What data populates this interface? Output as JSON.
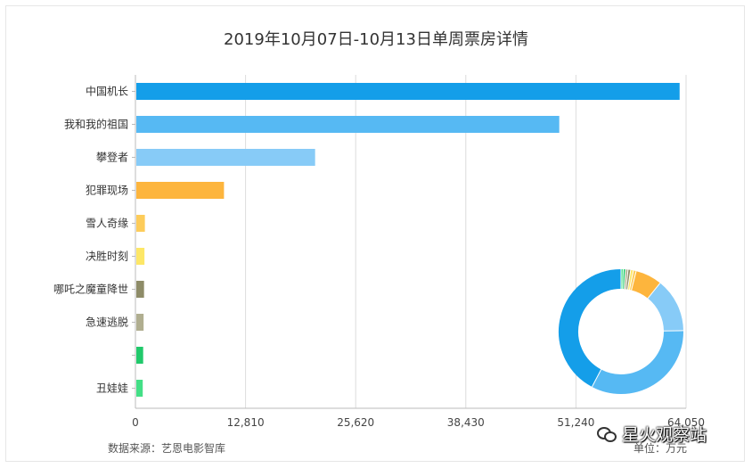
{
  "chart_data": [
    {
      "type": "bar",
      "orientation": "horizontal",
      "title": "2019年10月07日-10月13日单周票房详情",
      "categories": [
        "中国机长",
        "我和我的祖国",
        "攀登者",
        "犯罪现场",
        "雪人奇缘",
        "决胜时刻",
        "哪吒之魔童降世",
        "急速逃脱",
        "",
        "丑娃娃"
      ],
      "values": [
        63300,
        49300,
        20900,
        10300,
        1100,
        1050,
        1000,
        950,
        900,
        850
      ],
      "colors": [
        "#149ee9",
        "#56b9f3",
        "#87cbf7",
        "#fdb53d",
        "#fdcc5a",
        "#fde767",
        "#8e8c68",
        "#b0ae90",
        "#21c96b",
        "#43df86"
      ],
      "xticks": [
        "0",
        "12,810",
        "25,620",
        "38,430",
        "51,240",
        "64,050"
      ],
      "xlim": [
        0,
        64050
      ],
      "grid": true,
      "legend": "none"
    },
    {
      "type": "pie",
      "style": "donut",
      "values": [
        63300,
        49300,
        20900,
        10300,
        1100,
        1050,
        1000,
        950,
        900,
        850
      ],
      "colors": [
        "#149ee9",
        "#56b9f3",
        "#87cbf7",
        "#fdb53d",
        "#fdcc5a",
        "#fde767",
        "#8e8c68",
        "#b0ae90",
        "#21c96b",
        "#43df86"
      ]
    }
  ],
  "footer": {
    "source": "数据来源：艺恩电影智库",
    "unit": "单位：万元"
  },
  "watermark": {
    "text": "星火观察站"
  }
}
